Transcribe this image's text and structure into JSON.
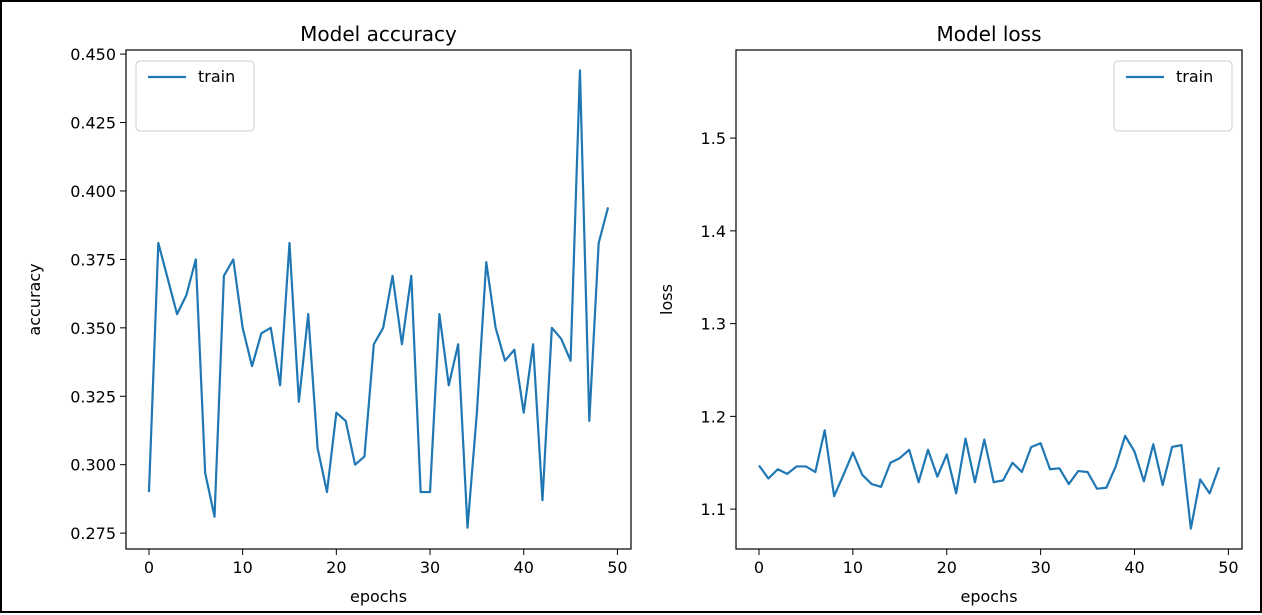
{
  "chart_data": [
    {
      "type": "line",
      "title": "Model accuracy",
      "xlabel": "epochs",
      "ylabel": "accuracy",
      "xlim": [
        -2.45,
        51.45
      ],
      "ylim": [
        0.2692,
        0.4515
      ],
      "xticks": [
        0,
        10,
        20,
        30,
        40,
        50
      ],
      "yticks": [
        0.275,
        0.3,
        0.325,
        0.35,
        0.375,
        0.4,
        0.425,
        0.45
      ],
      "ytick_labels": [
        "0.275",
        "0.300",
        "0.325",
        "0.350",
        "0.375",
        "0.400",
        "0.425",
        "0.450"
      ],
      "legend_position": "upper left",
      "series": [
        {
          "name": "train",
          "color": "#1f77b4",
          "x": [
            0,
            1,
            2,
            3,
            4,
            5,
            6,
            7,
            8,
            9,
            10,
            11,
            12,
            13,
            14,
            15,
            16,
            17,
            18,
            19,
            20,
            21,
            22,
            23,
            24,
            25,
            26,
            27,
            28,
            29,
            30,
            31,
            32,
            33,
            34,
            35,
            36,
            37,
            38,
            39,
            40,
            41,
            42,
            43,
            44,
            45,
            46,
            47,
            48,
            49
          ],
          "values": [
            0.29,
            0.381,
            0.368,
            0.355,
            0.362,
            0.375,
            0.297,
            0.281,
            0.369,
            0.375,
            0.35,
            0.336,
            0.348,
            0.35,
            0.329,
            0.381,
            0.323,
            0.355,
            0.306,
            0.29,
            0.319,
            0.316,
            0.3,
            0.303,
            0.344,
            0.35,
            0.369,
            0.344,
            0.369,
            0.29,
            0.29,
            0.355,
            0.329,
            0.344,
            0.277,
            0.319,
            0.374,
            0.35,
            0.338,
            0.342,
            0.319,
            0.344,
            0.287,
            0.35,
            0.346,
            0.338,
            0.444,
            0.316,
            0.381,
            0.394
          ]
        }
      ]
    },
    {
      "type": "line",
      "title": "Model loss",
      "xlabel": "epochs",
      "ylabel": "loss",
      "xlim": [
        -2.45,
        51.45
      ],
      "ylim": [
        1.057,
        1.595
      ],
      "xticks": [
        0,
        10,
        20,
        30,
        40,
        50
      ],
      "yticks": [
        1.1,
        1.2,
        1.3,
        1.4,
        1.5
      ],
      "ytick_labels": [
        "1.1",
        "1.2",
        "1.3",
        "1.4",
        "1.5"
      ],
      "legend_position": "upper right",
      "series": [
        {
          "name": "train",
          "color": "#1f77b4",
          "x": [
            0,
            1,
            2,
            3,
            4,
            5,
            6,
            7,
            8,
            9,
            10,
            11,
            12,
            13,
            14,
            15,
            16,
            17,
            18,
            19,
            20,
            21,
            22,
            23,
            24,
            25,
            26,
            27,
            28,
            29,
            30,
            31,
            32,
            33,
            34,
            35,
            36,
            37,
            38,
            39,
            40,
            41,
            42,
            43,
            44,
            45,
            46,
            47,
            48,
            49
          ],
          "values": [
            1.147,
            1.133,
            1.143,
            1.138,
            1.146,
            1.146,
            1.14,
            1.185,
            1.114,
            1.137,
            1.161,
            1.137,
            1.127,
            1.124,
            1.15,
            1.155,
            1.164,
            1.129,
            1.164,
            1.135,
            1.159,
            1.117,
            1.176,
            1.129,
            1.175,
            1.129,
            1.131,
            1.15,
            1.14,
            1.167,
            1.171,
            1.143,
            1.144,
            1.127,
            1.141,
            1.14,
            1.122,
            1.123,
            1.146,
            1.179,
            1.162,
            1.13,
            1.17,
            1.126,
            1.167,
            1.169,
            1.079,
            1.132,
            1.117,
            1.145
          ]
        }
      ]
    }
  ]
}
